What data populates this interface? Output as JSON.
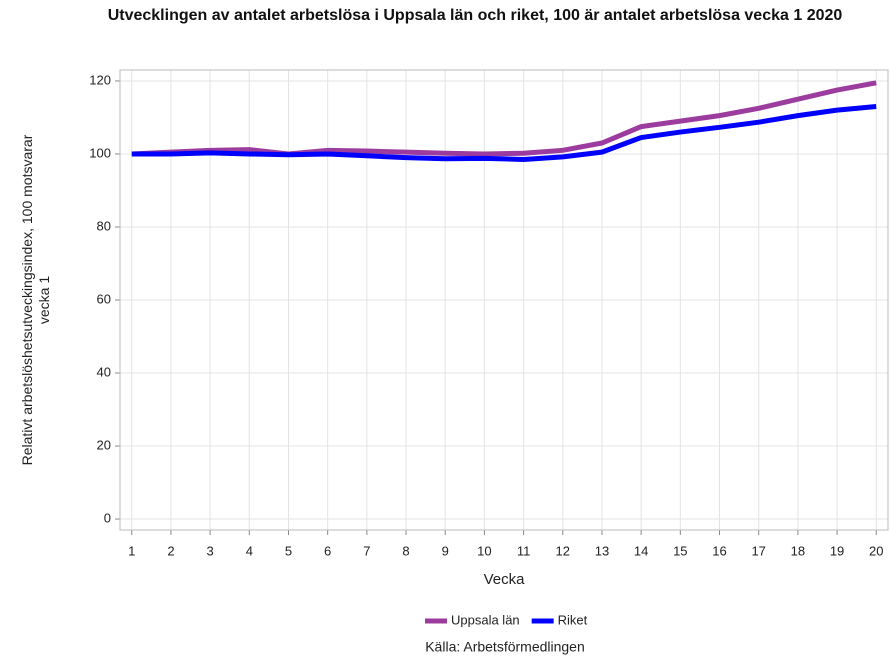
{
  "chart_data": {
    "type": "line",
    "title": "Utvecklingen av antalet arbetslösa i Uppsala län och riket, 100 är antalet arbetslösa vecka 1 2020",
    "x_label": "Vecka",
    "y_label": "Relativt arbetslöshetsutveckingsindex, 100 motsvarar vecka 1",
    "source": "Källa: Arbetsförmedlingen",
    "x": [
      1,
      2,
      3,
      4,
      5,
      6,
      7,
      8,
      9,
      10,
      11,
      12,
      13,
      14,
      15,
      16,
      17,
      18,
      19,
      20
    ],
    "xlim": [
      0.7,
      20.3
    ],
    "xticks": [
      1,
      2,
      3,
      4,
      5,
      6,
      7,
      8,
      9,
      10,
      11,
      12,
      13,
      14,
      15,
      16,
      17,
      18,
      19,
      20
    ],
    "ylim": [
      -3,
      123
    ],
    "yticks": [
      0,
      20,
      40,
      60,
      80,
      100,
      120
    ],
    "grid": true,
    "legend": "bottom",
    "series": [
      {
        "name": "Uppsala län",
        "color": "#9b3c9e",
        "values": [
          100,
          100.5,
          101,
          101.2,
          100,
          101,
          100.8,
          100.5,
          100.2,
          100,
          100.2,
          101,
          103,
          107.5,
          109,
          110.5,
          112.5,
          115,
          117.5,
          119.5
        ]
      },
      {
        "name": "Riket",
        "color": "#0000ff",
        "values": [
          100,
          100,
          100.3,
          100,
          99.8,
          100,
          99.5,
          99,
          98.7,
          98.8,
          98.5,
          99.2,
          100.5,
          104.5,
          106,
          107.3,
          108.7,
          110.5,
          112,
          113
        ]
      }
    ]
  }
}
